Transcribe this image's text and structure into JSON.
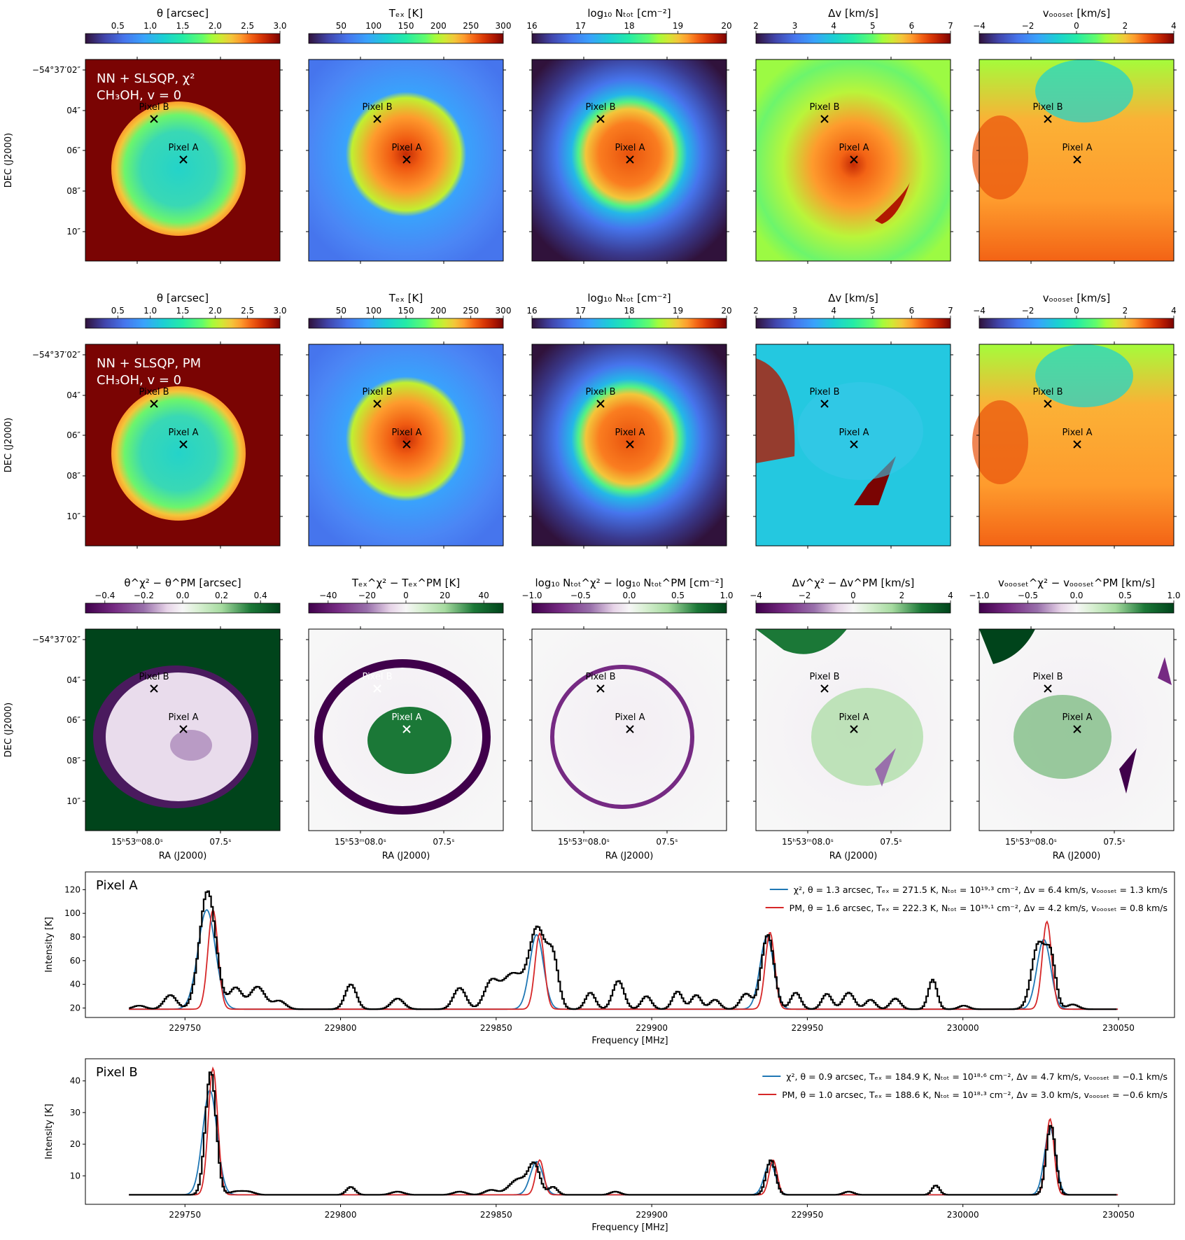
{
  "figure": {
    "dec_label": "DEC (J2000)",
    "ra_label": "RA (J2000)",
    "dec_ticks": [
      "−54°37′02″",
      "04″",
      "06″",
      "08″",
      "10″"
    ],
    "ra_ticks": [
      "15ʰ53ᵐ08.0ˢ",
      "07.5ˢ"
    ],
    "pixel_a_label": "Pixel A",
    "pixel_b_label": "Pixel B",
    "row_labels": [
      [
        "NN + SLSQP, χ²",
        "CH₃OH, v = 0"
      ],
      [
        "NN + SLSQP, PM",
        "CH₃OH, v = 0"
      ]
    ],
    "colorbars": {
      "theta": {
        "title": "θ [arcsec]",
        "range": [
          0,
          3
        ],
        "ticks": [
          "0.5",
          "1.0",
          "1.5",
          "2.0",
          "2.5",
          "3.0"
        ],
        "tick_values": [
          0.5,
          1.0,
          1.5,
          2.0,
          2.5,
          3.0
        ]
      },
      "tex": {
        "title": "Tₑₓ [K]",
        "range": [
          0,
          300
        ],
        "ticks": [
          "50",
          "100",
          "150",
          "200",
          "250",
          "300"
        ],
        "tick_values": [
          50,
          100,
          150,
          200,
          250,
          300
        ]
      },
      "ntot": {
        "title": "log₁₀ Nₜₒₜ [cm⁻²]",
        "range": [
          16,
          20
        ],
        "ticks": [
          "16",
          "17",
          "18",
          "19",
          "20"
        ],
        "tick_values": [
          16,
          17,
          18,
          19,
          20
        ]
      },
      "dv": {
        "title": "Δv [km/s]",
        "range": [
          2,
          7
        ],
        "ticks": [
          "2",
          "3",
          "4",
          "5",
          "6",
          "7"
        ],
        "tick_values": [
          2,
          3,
          4,
          5,
          6,
          7
        ]
      },
      "voff": {
        "title": "vₒₒₒₛₑₜ [km/s]",
        "range": [
          -4,
          4
        ],
        "ticks": [
          "−4",
          "−2",
          "0",
          "2",
          "4"
        ],
        "tick_values": [
          -4,
          -2,
          0,
          2,
          4
        ]
      },
      "dtheta": {
        "title": "θ^χ² − θ^PM [arcsec]",
        "range": [
          -0.5,
          0.5
        ],
        "ticks": [
          "−0.4",
          "−0.2",
          "0.0",
          "0.2",
          "0.4"
        ],
        "tick_values": [
          -0.4,
          -0.2,
          0.0,
          0.2,
          0.4
        ]
      },
      "dtex": {
        "title": "Tₑₓ^χ² − Tₑₓ^PM [K]",
        "range": [
          -50,
          50
        ],
        "ticks": [
          "−40",
          "−20",
          "0",
          "20",
          "40"
        ],
        "tick_values": [
          -40,
          -20,
          0,
          20,
          40
        ]
      },
      "dntot": {
        "title": "log₁₀ Nₜₒₜ^χ² − log₁₀ Nₜₒₜ^PM [cm⁻²]",
        "range": [
          -1,
          1
        ],
        "ticks": [
          "−1.0",
          "−0.5",
          "0.0",
          "0.5",
          "1.0"
        ],
        "tick_values": [
          -1.0,
          -0.5,
          0.0,
          0.5,
          1.0
        ]
      },
      "ddv": {
        "title": "Δv^χ² − Δv^PM [km/s]",
        "range": [
          -4,
          4
        ],
        "ticks": [
          "−4",
          "−2",
          "0",
          "2",
          "4"
        ],
        "tick_values": [
          -4,
          -2,
          0,
          2,
          4
        ]
      },
      "dvoff": {
        "title": "vₒₒₒₛₑₜ^χ² − vₒₒₒₛₑₜ^PM [km/s]",
        "range": [
          -1,
          1
        ],
        "ticks": [
          "−1.0",
          "−0.5",
          "0.0",
          "0.5",
          "1.0"
        ],
        "tick_values": [
          -1.0,
          -0.5,
          0.0,
          0.5,
          1.0
        ]
      }
    },
    "colors": {
      "map_dark_red": "#7a0403",
      "map_dark_purple": "#30123b",
      "chi2_line": "#1f77b4",
      "pm_line": "#d62728",
      "obs_line": "#000000"
    }
  },
  "chart_data": [
    {
      "type": "line",
      "panel": "Pixel A",
      "title": "Pixel A",
      "xlabel": "Frequency [MHz]",
      "ylabel": "Intensity [K]",
      "xlim": [
        229718,
        230068
      ],
      "ylim": [
        12,
        135
      ],
      "x_ticks": [
        229750,
        229800,
        229850,
        229900,
        229950,
        230000,
        230050
      ],
      "x_tick_labels": [
        "229750",
        "229800",
        "229850",
        "229900",
        "229950",
        "230000",
        "230050"
      ],
      "y_ticks": [
        20,
        40,
        60,
        80,
        100,
        120
      ],
      "y_tick_labels": [
        "20",
        "40",
        "60",
        "80",
        "100",
        "120"
      ],
      "baseline": 19,
      "freq_range": [
        229732,
        230050
      ],
      "legend": [
        "χ², θ = 1.3 arcsec, Tₑₓ = 271.5 K, Nₜₒₜ = 10¹⁹·³ cm⁻², Δv = 6.4 km/s, vₒₒₒₛₑₜ = 1.3 km/s",
        "PM, θ = 1.6 arcsec, Tₑₓ = 222.3 K, Nₜₒₜ = 10¹⁹·¹ cm⁻², Δv = 4.2 km/s, vₒₒₒₛₑₜ = 0.8 km/s"
      ],
      "series": [
        {
          "name": "observed",
          "peaks": [
            [
              229735,
              3,
              2
            ],
            [
              229745,
              12,
              2
            ],
            [
              229757,
              100,
              2.6
            ],
            [
              229766,
              18,
              2
            ],
            [
              229773,
              19,
              2.4
            ],
            [
              229780,
              7,
              2
            ],
            [
              229803,
              21,
              1.8
            ],
            [
              229818,
              9,
              2
            ],
            [
              229838,
              18,
              2
            ],
            [
              229848,
              21,
              2.2
            ],
            [
              229855,
              30,
              3.5
            ],
            [
              229863,
              67,
              2.6
            ],
            [
              229868,
              40,
              1.8
            ],
            [
              229880,
              14,
              1.6
            ],
            [
              229889,
              24,
              1.8
            ],
            [
              229898,
              11,
              1.6
            ],
            [
              229908,
              15,
              1.6
            ],
            [
              229914,
              12,
              1.6
            ],
            [
              229920,
              8,
              1.6
            ],
            [
              229930,
              13,
              1.8
            ],
            [
              229937,
              63,
              2
            ],
            [
              229946,
              14,
              1.6
            ],
            [
              229956,
              13,
              1.6
            ],
            [
              229963,
              14,
              1.8
            ],
            [
              229970,
              8,
              1.6
            ],
            [
              229978,
              9,
              1.6
            ],
            [
              229990,
              25,
              1.4
            ],
            [
              230000,
              3,
              1.6
            ],
            [
              230024,
              55,
              2.2
            ],
            [
              230028,
              40,
              1.6
            ],
            [
              230035,
              4,
              1.8
            ]
          ]
        },
        {
          "name": "chi2",
          "peaks": [
            [
              229757,
              84,
              2.8
            ],
            [
              229863,
              63,
              2.2
            ],
            [
              229937,
              61,
              2.2
            ],
            [
              230026,
              59,
              2.2
            ]
          ],
          "flat_top": 103
        },
        {
          "name": "PM",
          "peaks": [
            [
              229759,
              84,
              1.6
            ],
            [
              229864,
              64,
              1.5
            ],
            [
              229938,
              65,
              1.5
            ],
            [
              230027,
              74,
              1.5
            ]
          ],
          "flat_top": 103
        }
      ]
    },
    {
      "type": "line",
      "panel": "Pixel B",
      "title": "Pixel B",
      "xlabel": "Frequency [MHz]",
      "ylabel": "Intensity [K]",
      "xlim": [
        229718,
        230068
      ],
      "ylim": [
        1,
        47
      ],
      "x_ticks": [
        229750,
        229800,
        229850,
        229900,
        229950,
        230000,
        230050
      ],
      "x_tick_labels": [
        "229750",
        "229800",
        "229850",
        "229900",
        "229950",
        "230000",
        "230050"
      ],
      "y_ticks": [
        10,
        20,
        30,
        40
      ],
      "y_tick_labels": [
        "10",
        "20",
        "30",
        "40"
      ],
      "baseline": 4,
      "freq_range": [
        229732,
        230050
      ],
      "legend": [
        "χ², θ = 0.9 arcsec, Tₑₓ = 184.9 K, Nₜₒₜ = 10¹⁸·⁶ cm⁻², Δv = 4.7 km/s, vₒₒₒₛₑₜ = −0.1 km/s",
        "PM, θ = 1.0 arcsec, Tₑₓ = 188.6 K, Nₜₒₜ = 10¹⁸·³ cm⁻², Δv = 3.0 km/s, vₒₒₒₛₑₜ = −0.6 km/s"
      ],
      "series": [
        {
          "name": "observed",
          "peaks": [
            [
              229758,
              39,
              1.7
            ],
            [
              229766,
              1,
              2
            ],
            [
              229770,
              1,
              2
            ],
            [
              229803,
              2.5,
              1.4
            ],
            [
              229818,
              1,
              2
            ],
            [
              229838,
              1,
              2
            ],
            [
              229848,
              1.5,
              2
            ],
            [
              229857,
              5,
              3
            ],
            [
              229862,
              9,
              1.8
            ],
            [
              229868,
              2.5,
              1.4
            ],
            [
              229888,
              1,
              1.6
            ],
            [
              229938,
              11,
              1.5
            ],
            [
              229963,
              1,
              1.6
            ],
            [
              229991,
              3,
              1.2
            ],
            [
              230028,
              22,
              1.5
            ]
          ]
        },
        {
          "name": "chi2",
          "peaks": [
            [
              229758,
              33,
              2.3
            ],
            [
              229863,
              10.5,
              2.0
            ],
            [
              229938,
              10,
              1.8
            ],
            [
              230028,
              21,
              1.8
            ]
          ]
        },
        {
          "name": "PM",
          "peaks": [
            [
              229759,
              40,
              1.5
            ],
            [
              229864,
              11,
              1.3
            ],
            [
              229939,
              11,
              1.3
            ],
            [
              230028,
              24,
              1.3
            ]
          ]
        }
      ]
    }
  ]
}
